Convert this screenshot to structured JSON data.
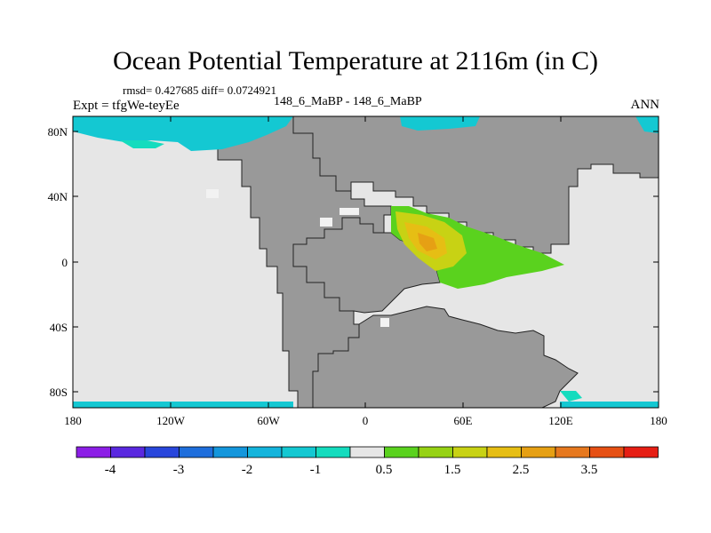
{
  "title": "Ocean Potential Temperature at 2116m (in C)",
  "stats": "rmsd= 0.427685 diff= 0.0724921",
  "expt": "Expt = tfgWe-teyEe",
  "subtitle": "148_6_MaBP - 148_6_MaBP",
  "season": "ANN",
  "lat_ticks": [
    "80N",
    "40N",
    "0",
    "40S",
    "80S"
  ],
  "lon_ticks": [
    "180",
    "120W",
    "60W",
    "0",
    "60E",
    "120E",
    "180"
  ],
  "colorbar": {
    "labels": [
      "-4",
      "-3",
      "-2",
      "-1",
      "0.5",
      "1.5",
      "2.5",
      "3.5"
    ],
    "colors": [
      "#8c1ee6",
      "#5a28e0",
      "#2846dc",
      "#1e6edc",
      "#1496dc",
      "#14b4dc",
      "#14c8d2",
      "#14dcbe",
      "#e6e6e6",
      "#5ad21e",
      "#96d214",
      "#c8d214",
      "#e6be14",
      "#e6a014",
      "#e6781e",
      "#e65014",
      "#e61e14"
    ]
  },
  "colors": {
    "land": "#999999",
    "ocean": "#e6e6e6"
  }
}
